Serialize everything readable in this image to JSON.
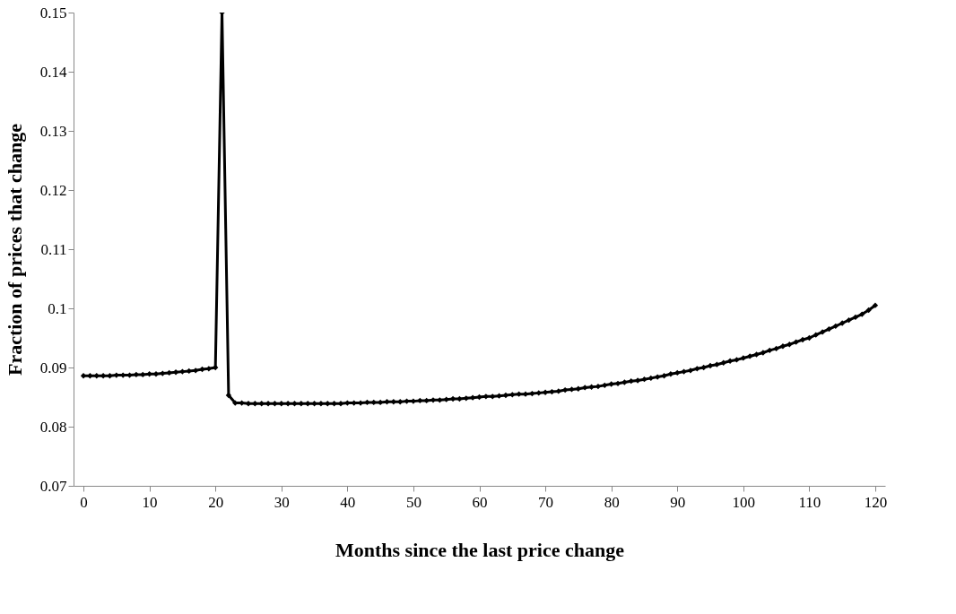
{
  "chart_data": {
    "type": "line",
    "xlabel": "Months since the last price change",
    "ylabel": "Fraction of prices that change",
    "x": [
      0,
      1,
      2,
      3,
      4,
      5,
      6,
      7,
      8,
      9,
      10,
      11,
      12,
      13,
      14,
      15,
      16,
      17,
      18,
      19,
      20,
      21,
      22,
      23,
      24,
      25,
      26,
      27,
      28,
      29,
      30,
      31,
      32,
      33,
      34,
      35,
      36,
      37,
      38,
      39,
      40,
      41,
      42,
      43,
      44,
      45,
      46,
      47,
      48,
      49,
      50,
      51,
      52,
      53,
      54,
      55,
      56,
      57,
      58,
      59,
      60,
      61,
      62,
      63,
      64,
      65,
      66,
      67,
      68,
      69,
      70,
      71,
      72,
      73,
      74,
      75,
      76,
      77,
      78,
      79,
      80,
      81,
      82,
      83,
      84,
      85,
      86,
      87,
      88,
      89,
      90,
      91,
      92,
      93,
      94,
      95,
      96,
      97,
      98,
      99,
      100,
      101,
      102,
      103,
      104,
      105,
      106,
      107,
      108,
      109,
      110,
      111,
      112,
      113,
      114,
      115,
      116,
      117,
      118,
      119,
      120
    ],
    "series": [
      {
        "color": "#000000",
        "values": [
          0.0886,
          0.0886,
          0.0886,
          0.0886,
          0.0886,
          0.0887,
          0.0887,
          0.0887,
          0.0888,
          0.0888,
          0.0889,
          0.0889,
          0.089,
          0.0891,
          0.0892,
          0.0893,
          0.0894,
          0.0895,
          0.0897,
          0.0898,
          0.09,
          0.15,
          0.0853,
          0.084,
          0.084,
          0.0839,
          0.0839,
          0.0839,
          0.0839,
          0.0839,
          0.0839,
          0.0839,
          0.0839,
          0.0839,
          0.0839,
          0.0839,
          0.0839,
          0.0839,
          0.0839,
          0.0839,
          0.084,
          0.084,
          0.084,
          0.0841,
          0.0841,
          0.0841,
          0.0842,
          0.0842,
          0.0842,
          0.0843,
          0.0843,
          0.0844,
          0.0844,
          0.0845,
          0.0845,
          0.0846,
          0.0847,
          0.0847,
          0.0848,
          0.0849,
          0.085,
          0.0851,
          0.0851,
          0.0852,
          0.0853,
          0.0854,
          0.0855,
          0.0855,
          0.0856,
          0.0857,
          0.0858,
          0.0859,
          0.086,
          0.0862,
          0.0863,
          0.0864,
          0.0866,
          0.0867,
          0.0868,
          0.087,
          0.0872,
          0.0873,
          0.0875,
          0.0877,
          0.0878,
          0.088,
          0.0882,
          0.0884,
          0.0886,
          0.0889,
          0.0891,
          0.0893,
          0.0895,
          0.0898,
          0.09,
          0.0903,
          0.0905,
          0.0908,
          0.0911,
          0.0913,
          0.0916,
          0.0919,
          0.0922,
          0.0925,
          0.0929,
          0.0932,
          0.0936,
          0.0939,
          0.0943,
          0.0947,
          0.095,
          0.0955,
          0.096,
          0.0965,
          0.097,
          0.0975,
          0.098,
          0.0985,
          0.099,
          0.0997,
          0.1005
        ]
      }
    ],
    "xlim": [
      -1.5,
      121.5
    ],
    "xticks": [
      0,
      10,
      20,
      30,
      40,
      50,
      60,
      70,
      80,
      90,
      100,
      110,
      120
    ],
    "ylim": [
      0.07,
      0.15
    ],
    "yticks": [
      0.07,
      0.08,
      0.09,
      {
        "value": 0.1,
        "label": "0.1"
      },
      0.11,
      0.12,
      0.13,
      0.14,
      0.15
    ],
    "grid": false,
    "legend": false,
    "marker": "diamond",
    "line_style": "solid"
  }
}
